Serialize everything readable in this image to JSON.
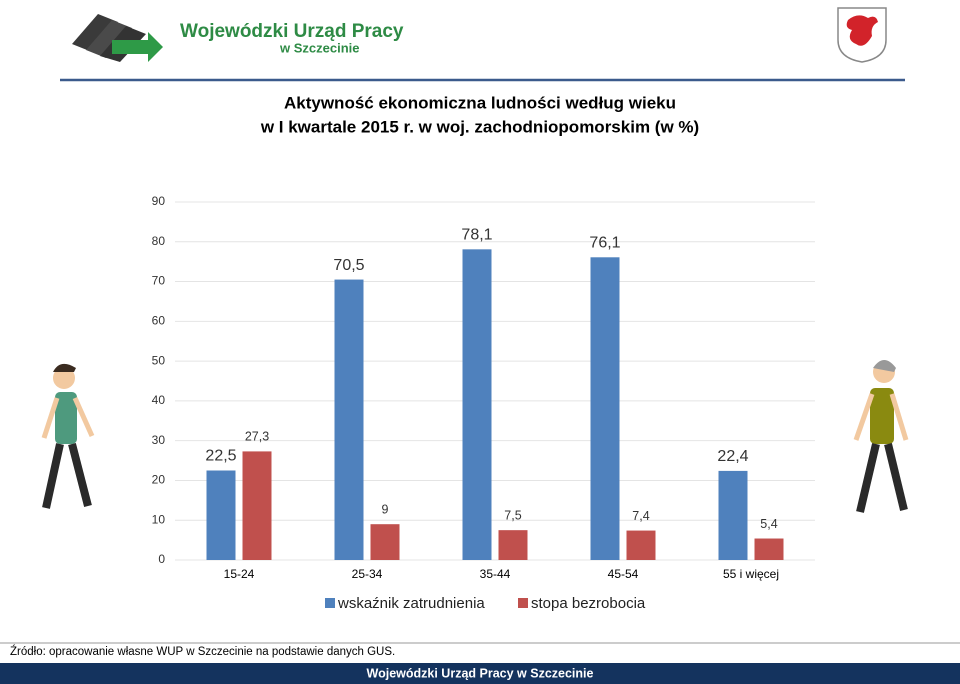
{
  "header": {
    "org_name": "Wojewódzki Urząd Pracy",
    "org_city": "w Szczecinie"
  },
  "chart_data": {
    "type": "bar",
    "title": [
      "Aktywność ekonomiczna ludności według wieku",
      "w I kwartale 2015 r. w woj. zachodniopomorskim (w %)"
    ],
    "categories": [
      "15-24",
      "25-34",
      "35-44",
      "45-54",
      "55 i więcej"
    ],
    "series": [
      {
        "name": "wskaźnik zatrudnienia",
        "color": "#4f81bd",
        "values": [
          22.5,
          70.5,
          78.1,
          76.1,
          22.4
        ],
        "value_labels": [
          "22,5",
          "70,5",
          "78,1",
          "76,1",
          "22,4"
        ]
      },
      {
        "name": "stopa bezrobocia",
        "color": "#c0504d",
        "values": [
          27.3,
          9,
          7.5,
          7.4,
          5.4
        ],
        "value_labels": [
          "27,3",
          "9",
          "7,5",
          "7,4",
          "5,4"
        ]
      }
    ],
    "ylim": [
      0,
      90
    ],
    "yticks": [
      0,
      10,
      20,
      30,
      40,
      50,
      60,
      70,
      80,
      90
    ],
    "grid": true,
    "legend": "bottom"
  },
  "source": "Źródło: opracowanie własne WUP w Szczecinie na podstawie danych GUS.",
  "footer": "Wojewódzki Urząd Pracy w Szczecinie"
}
